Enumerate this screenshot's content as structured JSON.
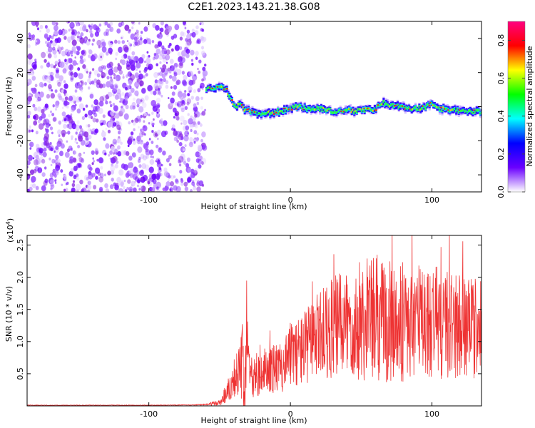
{
  "title": "C2E1.2023.143.21.38.G08",
  "chart_data": [
    {
      "type": "heatmap",
      "xlabel": "Height of straight line (km)",
      "ylabel": "Frequency (Hz)",
      "xlim": [
        -186,
        135
      ],
      "ylim": [
        -50,
        50
      ],
      "x_ticks": [
        -100,
        0,
        100
      ],
      "y_ticks": [
        -40,
        -20,
        0,
        20,
        40
      ],
      "colorbar": {
        "label": "Normalized spectral amplitude",
        "range": [
          0.0,
          0.9
        ],
        "ticks": [
          "0.0",
          "0.2",
          "0.4",
          "0.6",
          "0.8"
        ],
        "colors": [
          "#ffffff",
          "#6a00ff",
          "#0000ff",
          "#00ffff",
          "#00ff00",
          "#ffff00",
          "#ff0000",
          "#ff0080"
        ]
      },
      "noise_region_x": [
        -186,
        -60
      ],
      "trace": [
        {
          "x": -60,
          "f": 10
        },
        {
          "x": -55,
          "f": 11
        },
        {
          "x": -50,
          "f": 12
        },
        {
          "x": -46,
          "f": 10
        },
        {
          "x": -43,
          "f": 6
        },
        {
          "x": -40,
          "f": 0
        },
        {
          "x": -36,
          "f": 1
        },
        {
          "x": -32,
          "f": -2
        },
        {
          "x": -28,
          "f": -3
        },
        {
          "x": -22,
          "f": -5
        },
        {
          "x": -16,
          "f": -4
        },
        {
          "x": -10,
          "f": -3
        },
        {
          "x": -5,
          "f": -2
        },
        {
          "x": 0,
          "f": -1
        },
        {
          "x": 5,
          "f": 0
        },
        {
          "x": 10,
          "f": -1
        },
        {
          "x": 15,
          "f": -1
        },
        {
          "x": 20,
          "f": -1
        },
        {
          "x": 25,
          "f": -2
        },
        {
          "x": 30,
          "f": -3
        },
        {
          "x": 35,
          "f": -2
        },
        {
          "x": 40,
          "f": -2
        },
        {
          "x": 45,
          "f": -3
        },
        {
          "x": 50,
          "f": -2
        },
        {
          "x": 55,
          "f": -2
        },
        {
          "x": 60,
          "f": -1
        },
        {
          "x": 65,
          "f": 2
        },
        {
          "x": 70,
          "f": 1
        },
        {
          "x": 75,
          "f": 0
        },
        {
          "x": 80,
          "f": -1
        },
        {
          "x": 85,
          "f": -1
        },
        {
          "x": 90,
          "f": -1
        },
        {
          "x": 95,
          "f": 0
        },
        {
          "x": 100,
          "f": 2
        },
        {
          "x": 105,
          "f": -1
        },
        {
          "x": 110,
          "f": -2
        },
        {
          "x": 115,
          "f": -2
        },
        {
          "x": 120,
          "f": -3
        },
        {
          "x": 125,
          "f": -3
        },
        {
          "x": 130,
          "f": -3
        },
        {
          "x": 135,
          "f": -3
        }
      ]
    },
    {
      "type": "line",
      "xlabel": "Height of straight line (km)",
      "ylabel": "SNR (10 * v/v)",
      "scale_label": "(x10",
      "scale_exponent": "4",
      "scale_close": ")",
      "xlim": [
        -186,
        135
      ],
      "ylim": [
        0,
        2.65
      ],
      "x_ticks": [
        -100,
        0,
        100
      ],
      "y_ticks": [
        "0.5",
        "1.0",
        "1.5",
        "2.0",
        "2.5"
      ],
      "series": [
        {
          "color": "#ee3333",
          "x": [
            -186,
            -150,
            -100,
            -70,
            -60,
            -50,
            -44,
            -40,
            -35,
            -31,
            -30,
            -28,
            -26,
            -24,
            -20,
            -16,
            -12,
            -8,
            -4,
            0,
            5,
            10,
            15,
            20,
            25,
            30,
            35,
            40,
            45,
            50,
            55,
            60,
            65,
            70,
            75,
            80,
            85,
            90,
            95,
            100,
            105,
            110,
            115,
            120,
            125,
            130,
            135
          ],
          "mean": [
            0.01,
            0.01,
            0.01,
            0.015,
            0.02,
            0.05,
            0.25,
            0.45,
            0.55,
            0.7,
            1.2,
            0.6,
            0.4,
            0.5,
            0.45,
            0.55,
            0.6,
            0.55,
            0.7,
            0.8,
            0.85,
            0.9,
            1.0,
            1.1,
            1.15,
            1.2,
            1.25,
            1.3,
            1.3,
            1.3,
            1.35,
            1.35,
            1.3,
            1.3,
            1.3,
            1.25,
            1.3,
            1.3,
            1.3,
            1.3,
            1.25,
            1.3,
            1.25,
            1.25,
            1.2,
            1.2,
            1.2
          ],
          "spread": [
            0.005,
            0.005,
            0.005,
            0.005,
            0.01,
            0.05,
            0.2,
            0.3,
            0.5,
            0.9,
            0.6,
            0.4,
            0.3,
            0.35,
            0.3,
            0.4,
            0.4,
            0.4,
            0.45,
            0.5,
            0.55,
            0.6,
            0.65,
            0.7,
            0.75,
            0.8,
            0.85,
            0.9,
            0.9,
            0.95,
            1.0,
            1.1,
            1.0,
            1.0,
            0.95,
            0.9,
            0.95,
            0.95,
            0.9,
            0.95,
            0.9,
            0.9,
            0.85,
            0.85,
            0.8,
            0.8,
            0.8
          ]
        }
      ]
    }
  ]
}
